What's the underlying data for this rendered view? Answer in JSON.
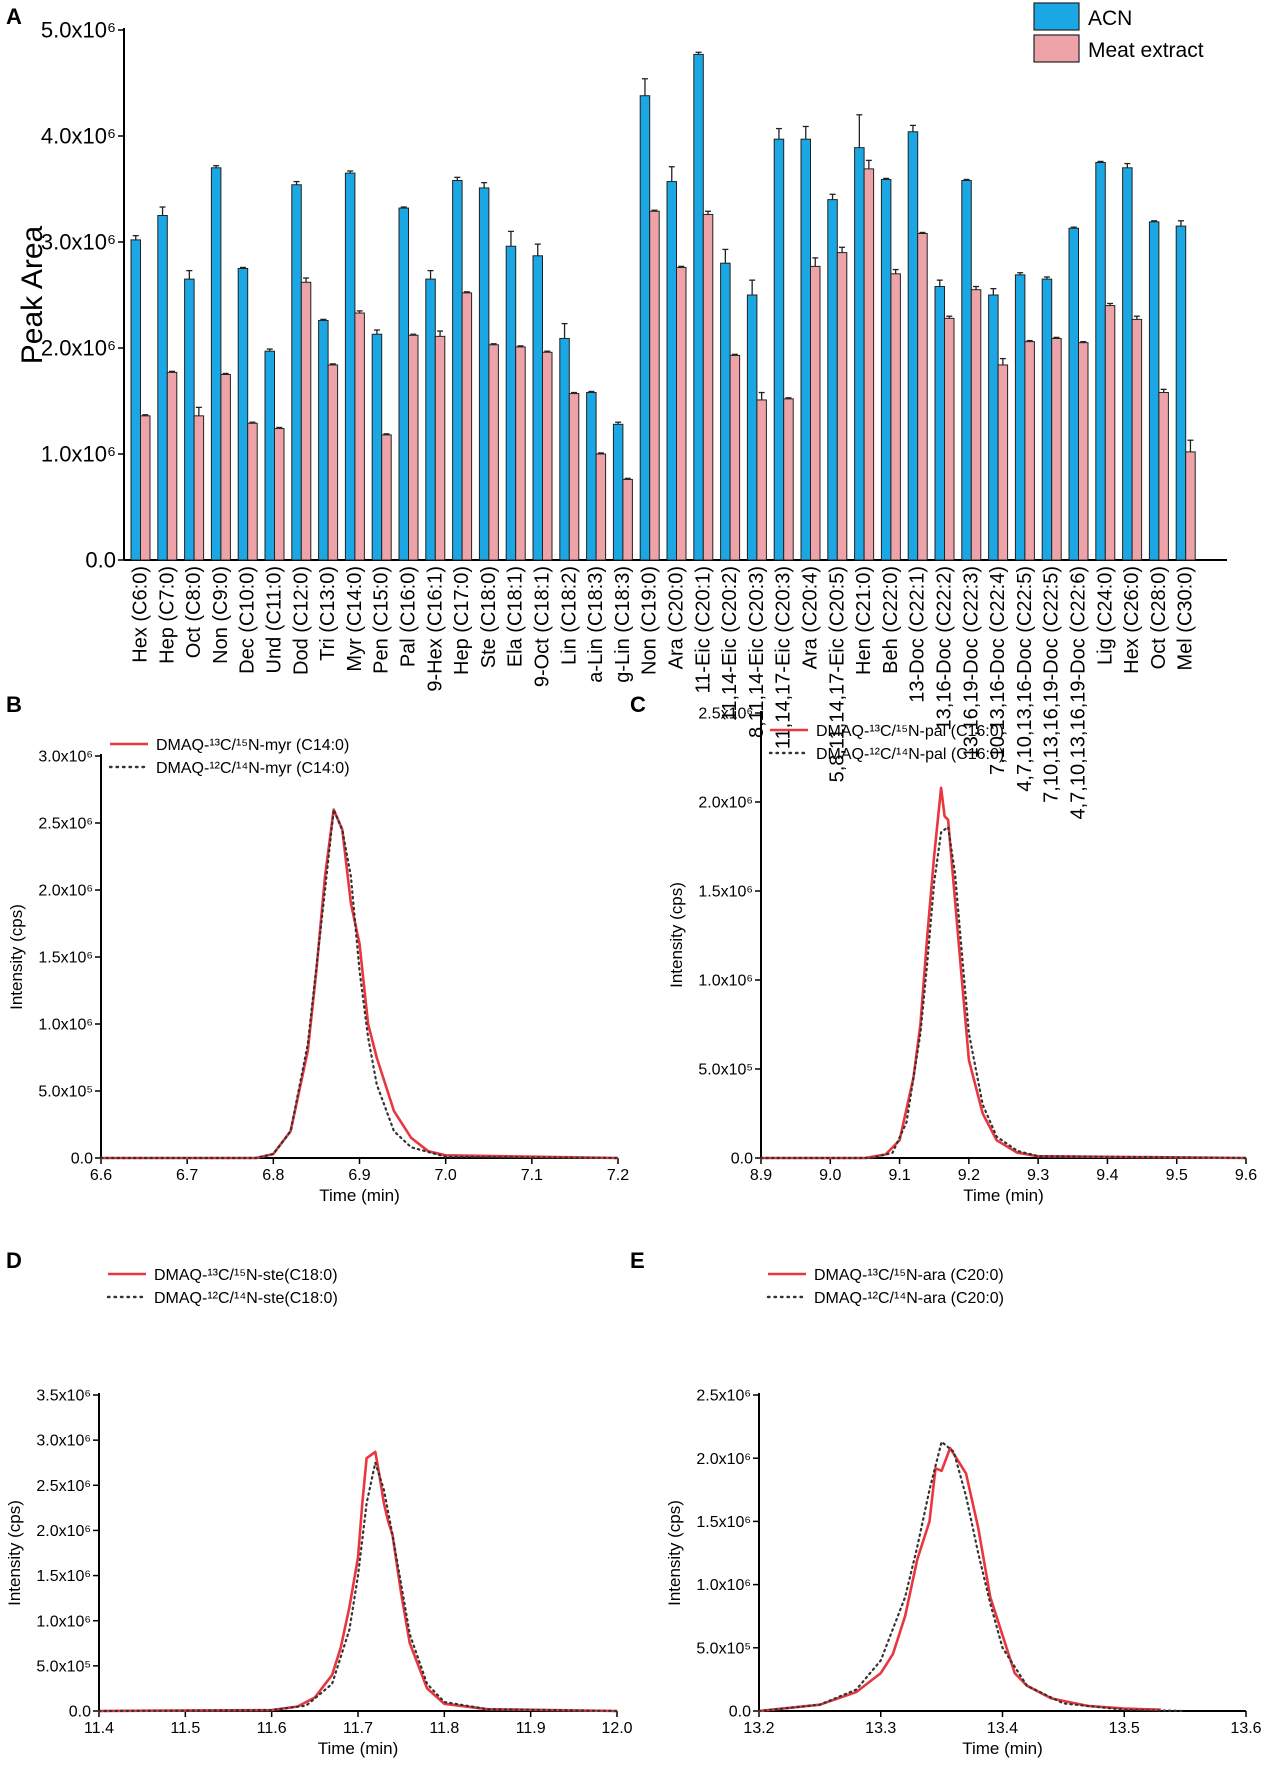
{
  "chart_data": [
    {
      "panel": "A",
      "type": "bar",
      "title": "",
      "xlabel": "",
      "ylabel": "Peak Area",
      "ylim": [
        0,
        5000000
      ],
      "y_scale": 1000000,
      "yticks": [
        0,
        1,
        2,
        3,
        4,
        5
      ],
      "ytick_labels": [
        "0.0",
        "1.0x10⁶",
        "2.0x10⁶",
        "3.0x10⁶",
        "4.0x10⁶",
        "5.0x10⁶"
      ],
      "legend_position": "top-right",
      "categories": [
        "Hex (C6:0)",
        "Hep (C7:0)",
        "Oct (C8:0)",
        "Non (C9:0)",
        "Dec (C10:0)",
        "Und (C11:0)",
        "Dod (C12:0)",
        "Tri (C13:0)",
        "Myr (C14:0)",
        "Pen (C15:0)",
        "Pal (C16:0)",
        "9-Hex (C16:1)",
        "Hep (C17:0)",
        "Ste (C18:0)",
        "Ela (C18:1)",
        "9-Oct (C18:1)",
        "Lin (C18:2)",
        "a-Lin (C18:3)",
        "g-Lin (C18:3)",
        "Non (C19:0)",
        "Ara (C20:0)",
        "11-Eic (C20:1)",
        "11,14-Eic (C20:2)",
        "8,11,14-Eic (C20:3)",
        "11,14,17-Eic (C20:3)",
        "Ara (C20:4)",
        "5,8,11,14,17-Eic (C20:5)",
        "Hen (C21:0)",
        "Beh (C22:0)",
        "13-Doc (C22:1)",
        "13,16-Doc (C22:2)",
        "13,16,19-Doc (C22:3)",
        "7,10,13,16-Doc (C22:4)",
        "4,7,10,13,16-Doc (C22:5)",
        "7,10,13,16,19-Doc (C22:5)",
        "4,7,10,13,16,19-Doc (C22:6)",
        "Lig (C24:0)",
        "Hex (C26:0)",
        "Oct (C28:0)",
        "Mel (C30:0)"
      ],
      "series": [
        {
          "name": "ACN",
          "color": "#1ba7e3",
          "values": [
            3.02,
            3.25,
            2.65,
            3.7,
            2.75,
            1.97,
            3.54,
            2.26,
            3.65,
            2.13,
            3.32,
            2.65,
            3.58,
            3.51,
            2.96,
            2.87,
            2.09,
            1.58,
            1.28,
            4.38,
            3.57,
            4.77,
            2.8,
            2.5,
            3.97,
            3.97,
            3.4,
            3.89,
            3.59,
            4.04,
            2.58,
            3.58,
            2.5,
            2.69,
            2.65,
            3.13,
            3.75,
            3.7,
            3.19,
            3.15
          ],
          "errors": [
            0.04,
            0.08,
            0.08,
            0.02,
            0.01,
            0.02,
            0.03,
            0.01,
            0.02,
            0.04,
            0.01,
            0.08,
            0.03,
            0.05,
            0.14,
            0.11,
            0.14,
            0.01,
            0.02,
            0.16,
            0.14,
            0.02,
            0.13,
            0.14,
            0.1,
            0.12,
            0.05,
            0.31,
            0.01,
            0.06,
            0.06,
            0.01,
            0.06,
            0.02,
            0.02,
            0.01,
            0.01,
            0.04,
            0.01,
            0.05
          ]
        },
        {
          "name": "Meat extract",
          "color": "#eea3a9",
          "values": [
            1.36,
            1.77,
            1.36,
            1.75,
            1.29,
            1.24,
            2.62,
            1.84,
            2.33,
            1.18,
            2.12,
            2.11,
            2.52,
            2.03,
            2.01,
            1.96,
            1.57,
            1.0,
            0.76,
            3.29,
            2.76,
            3.26,
            1.93,
            1.51,
            1.52,
            2.77,
            2.9,
            3.69,
            2.7,
            3.08,
            2.28,
            2.55,
            1.84,
            2.06,
            2.09,
            2.05,
            2.4,
            2.27,
            1.58,
            1.02
          ],
          "errors": [
            0.01,
            0.01,
            0.08,
            0.01,
            0.01,
            0.01,
            0.04,
            0.01,
            0.02,
            0.01,
            0.01,
            0.05,
            0.01,
            0.01,
            0.01,
            0.01,
            0.01,
            0.01,
            0.01,
            0.01,
            0.01,
            0.03,
            0.01,
            0.07,
            0.01,
            0.08,
            0.05,
            0.08,
            0.04,
            0.01,
            0.02,
            0.03,
            0.06,
            0.01,
            0.01,
            0.01,
            0.02,
            0.03,
            0.03,
            0.11
          ]
        }
      ]
    },
    {
      "panel": "B",
      "type": "line",
      "xlabel": "Time (min)",
      "ylabel": "Intensity (cps)",
      "xlim": [
        6.6,
        7.2
      ],
      "ylim": [
        0,
        3000000
      ],
      "y_scale": 1000000,
      "xticks": [
        "6.6",
        "6.7",
        "6.8",
        "6.9",
        "7.0",
        "7.1",
        "7.2"
      ],
      "yticks": [
        0,
        0.5,
        1.0,
        1.5,
        2.0,
        2.5,
        3.0
      ],
      "ytick_labels": [
        "0.0",
        "5.0x10⁵",
        "1.0x10⁶",
        "1.5x10⁶",
        "2.0x10⁶",
        "2.5x10⁶",
        "3.0x10⁶"
      ],
      "legend_position": "top-left",
      "series": [
        {
          "name": "DMAQ-¹³C/¹⁵N-myr (C14:0)",
          "color": "#e8373f",
          "style": "solid",
          "points": [
            [
              6.6,
              0
            ],
            [
              6.78,
              0
            ],
            [
              6.8,
              0.03
            ],
            [
              6.82,
              0.2
            ],
            [
              6.84,
              0.8
            ],
            [
              6.85,
              1.4
            ],
            [
              6.86,
              2.1
            ],
            [
              6.87,
              2.6
            ],
            [
              6.88,
              2.45
            ],
            [
              6.89,
              1.9
            ],
            [
              6.9,
              1.6
            ],
            [
              6.91,
              1.0
            ],
            [
              6.92,
              0.75
            ],
            [
              6.94,
              0.35
            ],
            [
              6.96,
              0.15
            ],
            [
              6.98,
              0.05
            ],
            [
              7.0,
              0.02
            ],
            [
              7.2,
              0
            ]
          ]
        },
        {
          "name": "DMAQ-¹²C/¹⁴N-myr (C14:0)",
          "color": "#333333",
          "style": "dotted",
          "points": [
            [
              6.6,
              0
            ],
            [
              6.78,
              0
            ],
            [
              6.8,
              0.03
            ],
            [
              6.82,
              0.2
            ],
            [
              6.84,
              0.85
            ],
            [
              6.86,
              2.0
            ],
            [
              6.87,
              2.6
            ],
            [
              6.88,
              2.45
            ],
            [
              6.89,
              2.1
            ],
            [
              6.9,
              1.4
            ],
            [
              6.91,
              0.9
            ],
            [
              6.92,
              0.55
            ],
            [
              6.94,
              0.2
            ],
            [
              6.96,
              0.08
            ],
            [
              7.0,
              0.01
            ],
            [
              7.2,
              0
            ]
          ]
        }
      ]
    },
    {
      "panel": "C",
      "type": "line",
      "xlabel": "Time (min)",
      "ylabel": "Intensity (cps)",
      "xlim": [
        8.9,
        9.6
      ],
      "ylim": [
        0,
        2500000
      ],
      "y_scale": 1000000,
      "xticks": [
        "8.9",
        "9.0",
        "9.1",
        "9.2",
        "9.3",
        "9.4",
        "9.5",
        "9.6"
      ],
      "yticks": [
        0,
        0.5,
        1.0,
        1.5,
        2.0,
        2.5
      ],
      "ytick_labels": [
        "0.0",
        "5.0x10⁵",
        "1.0x10⁶",
        "1.5x10⁶",
        "2.0x10⁶",
        "2.5x10⁶"
      ],
      "legend_position": "top-left",
      "series": [
        {
          "name": "DMAQ-¹³C/¹⁵N-pal (C16:0)",
          "color": "#e8373f",
          "style": "solid",
          "points": [
            [
              8.9,
              0
            ],
            [
              9.05,
              0
            ],
            [
              9.08,
              0.02
            ],
            [
              9.1,
              0.1
            ],
            [
              9.12,
              0.45
            ],
            [
              9.13,
              0.75
            ],
            [
              9.14,
              1.25
            ],
            [
              9.15,
              1.7
            ],
            [
              9.16,
              2.08
            ],
            [
              9.165,
              1.92
            ],
            [
              9.17,
              1.9
            ],
            [
              9.18,
              1.45
            ],
            [
              9.19,
              1.0
            ],
            [
              9.2,
              0.55
            ],
            [
              9.22,
              0.25
            ],
            [
              9.24,
              0.1
            ],
            [
              9.27,
              0.03
            ],
            [
              9.3,
              0.01
            ],
            [
              9.6,
              0
            ]
          ]
        },
        {
          "name": "DMAQ-¹²C/¹⁴N-pal (C16:0)",
          "color": "#333333",
          "style": "dotted",
          "points": [
            [
              8.9,
              0
            ],
            [
              9.06,
              0
            ],
            [
              9.09,
              0.03
            ],
            [
              9.11,
              0.2
            ],
            [
              9.13,
              0.7
            ],
            [
              9.14,
              1.1
            ],
            [
              9.15,
              1.55
            ],
            [
              9.16,
              1.83
            ],
            [
              9.17,
              1.86
            ],
            [
              9.18,
              1.6
            ],
            [
              9.19,
              1.15
            ],
            [
              9.2,
              0.7
            ],
            [
              9.22,
              0.3
            ],
            [
              9.24,
              0.12
            ],
            [
              9.27,
              0.04
            ],
            [
              9.3,
              0.01
            ],
            [
              9.6,
              0
            ]
          ]
        }
      ]
    },
    {
      "panel": "D",
      "type": "line",
      "xlabel": "Time (min)",
      "ylabel": "Intensity (cps)",
      "xlim": [
        11.4,
        12.0
      ],
      "ylim": [
        0,
        3500000
      ],
      "y_scale": 1000000,
      "xticks": [
        "11.4",
        "11.5",
        "11.6",
        "11.7",
        "11.8",
        "11.9",
        "12.0"
      ],
      "yticks": [
        0,
        0.5,
        1.0,
        1.5,
        2.0,
        2.5,
        3.0,
        3.5
      ],
      "ytick_labels": [
        "0.0",
        "5.0x10⁵",
        "1.0x10⁶",
        "1.5x10⁶",
        "2.0x10⁶",
        "2.5x10⁶",
        "3.0x10⁶",
        "3.5x10⁶"
      ],
      "legend_position": "top-left",
      "series": [
        {
          "name": "DMAQ-¹³C/¹⁵N-ste(C18:0)",
          "color": "#e8373f",
          "style": "solid",
          "points": [
            [
              11.4,
              0
            ],
            [
              11.6,
              0.01
            ],
            [
              11.63,
              0.05
            ],
            [
              11.65,
              0.15
            ],
            [
              11.67,
              0.4
            ],
            [
              11.68,
              0.7
            ],
            [
              11.69,
              1.15
            ],
            [
              11.7,
              1.7
            ],
            [
              11.705,
              2.3
            ],
            [
              11.71,
              2.8
            ],
            [
              11.72,
              2.87
            ],
            [
              11.725,
              2.6
            ],
            [
              11.73,
              2.3
            ],
            [
              11.735,
              2.1
            ],
            [
              11.74,
              1.95
            ],
            [
              11.75,
              1.3
            ],
            [
              11.76,
              0.75
            ],
            [
              11.78,
              0.25
            ],
            [
              11.8,
              0.08
            ],
            [
              11.85,
              0.02
            ],
            [
              12.0,
              0
            ]
          ]
        },
        {
          "name": "DMAQ-¹²C/¹⁴N-ste(C18:0)",
          "color": "#333333",
          "style": "dotted",
          "points": [
            [
              11.4,
              0
            ],
            [
              11.6,
              0.01
            ],
            [
              11.64,
              0.06
            ],
            [
              11.67,
              0.3
            ],
            [
              11.69,
              0.9
            ],
            [
              11.7,
              1.5
            ],
            [
              11.71,
              2.3
            ],
            [
              11.72,
              2.75
            ],
            [
              11.73,
              2.45
            ],
            [
              11.74,
              1.95
            ],
            [
              11.75,
              1.4
            ],
            [
              11.76,
              0.85
            ],
            [
              11.78,
              0.3
            ],
            [
              11.8,
              0.1
            ],
            [
              11.85,
              0.02
            ],
            [
              12.0,
              0
            ]
          ]
        }
      ]
    },
    {
      "panel": "E",
      "type": "line",
      "xlabel": "Time (min)",
      "ylabel": "Intensity (cps)",
      "xlim": [
        13.2,
        13.6
      ],
      "ylim": [
        0,
        2500000
      ],
      "y_scale": 1000000,
      "xticks": [
        "13.2",
        "13.3",
        "13.4",
        "13.5",
        "13.6"
      ],
      "yticks": [
        0,
        0.5,
        1.0,
        1.5,
        2.0,
        2.5
      ],
      "ytick_labels": [
        "0.0",
        "5.0x10⁵",
        "1.0x10⁶",
        "1.5x10⁶",
        "2.0x10⁶",
        "2.5x10⁶"
      ],
      "legend_position": "top-left",
      "series": [
        {
          "name": "DMAQ-¹³C/¹⁵N-ara (C20:0)",
          "color": "#e8373f",
          "style": "solid",
          "points": [
            [
              13.2,
              0
            ],
            [
              13.25,
              0.05
            ],
            [
              13.28,
              0.15
            ],
            [
              13.3,
              0.3
            ],
            [
              13.31,
              0.45
            ],
            [
              13.32,
              0.75
            ],
            [
              13.33,
              1.2
            ],
            [
              13.34,
              1.5
            ],
            [
              13.345,
              1.92
            ],
            [
              13.35,
              1.9
            ],
            [
              13.357,
              2.08
            ],
            [
              13.37,
              1.88
            ],
            [
              13.38,
              1.45
            ],
            [
              13.39,
              0.9
            ],
            [
              13.4,
              0.6
            ],
            [
              13.41,
              0.3
            ],
            [
              13.42,
              0.2
            ],
            [
              13.44,
              0.1
            ],
            [
              13.47,
              0.04
            ],
            [
              13.5,
              0.02
            ],
            [
              13.53,
              0.01
            ]
          ]
        },
        {
          "name": "DMAQ-¹²C/¹⁴N-ara (C20:0)",
          "color": "#333333",
          "style": "dotted",
          "points": [
            [
              13.2,
              0
            ],
            [
              13.25,
              0.05
            ],
            [
              13.28,
              0.17
            ],
            [
              13.3,
              0.4
            ],
            [
              13.32,
              0.9
            ],
            [
              13.33,
              1.3
            ],
            [
              13.34,
              1.75
            ],
            [
              13.35,
              2.13
            ],
            [
              13.36,
              2.05
            ],
            [
              13.37,
              1.7
            ],
            [
              13.38,
              1.25
            ],
            [
              13.39,
              0.85
            ],
            [
              13.4,
              0.5
            ],
            [
              13.42,
              0.2
            ],
            [
              13.45,
              0.06
            ],
            [
              13.5,
              0.01
            ],
            [
              13.55,
              0
            ]
          ]
        }
      ]
    }
  ]
}
